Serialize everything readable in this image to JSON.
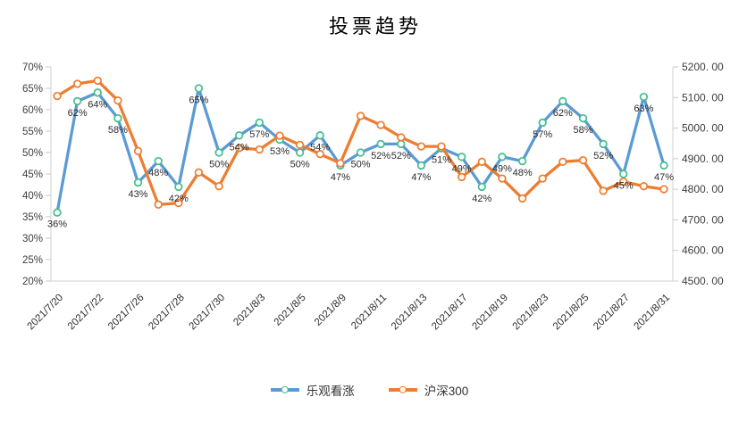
{
  "title": "投票趋势",
  "legend": {
    "items": [
      {
        "label": "乐观看涨",
        "color": "#5B9BD5",
        "marker_ring": "#43BD8D"
      },
      {
        "label": "沪深300",
        "color": "#ED7D31",
        "marker_ring": "#ED7D31"
      }
    ]
  },
  "axes": {
    "left_ticks": [
      "70%",
      "65%",
      "60%",
      "55%",
      "50%",
      "45%",
      "40%",
      "35%",
      "30%",
      "25%",
      "20%"
    ],
    "right_ticks": [
      "5200. 00",
      "5100. 00",
      "5000. 00",
      "4900. 00",
      "4800. 00",
      "4700. 00",
      "4600. 00",
      "4500. 00"
    ],
    "x_tick_labels": [
      "2021/7/20",
      "2021/7/22",
      "2021/7/26",
      "2021/7/28",
      "2021/7/30",
      "2021/8/3",
      "2021/8/5",
      "2021/8/9",
      "2021/8/11",
      "2021/8/13",
      "2021/8/17",
      "2021/8/19",
      "2021/8/23",
      "2021/8/25",
      "2021/8/27",
      "2021/8/31"
    ]
  },
  "chart_data": {
    "type": "line",
    "title": "投票趋势",
    "n_points": 31,
    "x_tick_labels": [
      "2021/7/20",
      "2021/7/22",
      "2021/7/26",
      "2021/7/28",
      "2021/7/30",
      "2021/8/3",
      "2021/8/5",
      "2021/8/9",
      "2021/8/11",
      "2021/8/13",
      "2021/8/17",
      "2021/8/19",
      "2021/8/23",
      "2021/8/25",
      "2021/8/27",
      "2021/8/31"
    ],
    "x_ticks_label_every_other_point": true,
    "series": [
      {
        "name": "乐观看涨",
        "axis": "left",
        "unit": "%",
        "color": "#5B9BD5",
        "marker_ring": "#43BD8D",
        "data_labels_shown": true,
        "values": [
          36,
          62,
          64,
          58,
          43,
          48,
          42,
          65,
          50,
          54,
          57,
          53,
          50,
          54,
          47,
          50,
          52,
          52,
          47,
          51,
          49,
          42,
          49,
          48,
          57,
          62,
          58,
          52,
          45,
          63,
          47
        ]
      },
      {
        "name": "沪深300",
        "axis": "right",
        "color": "#ED7D31",
        "marker_ring": "#ED7D31",
        "data_labels_shown": false,
        "values": [
          5105,
          5145,
          5155,
          5090,
          4925,
          4750,
          4755,
          4855,
          4810,
          4935,
          4930,
          4975,
          4945,
          4915,
          4885,
          5040,
          5010,
          4970,
          4940,
          4940,
          4840,
          4890,
          4835,
          4770,
          4835,
          4890,
          4895,
          4795,
          4825,
          4810,
          4800
        ]
      }
    ],
    "left_axis": {
      "min": 20,
      "max": 70,
      "step": 5,
      "unit": "%"
    },
    "right_axis": {
      "min": 4500,
      "max": 5200,
      "step": 100,
      "format": "0.00"
    },
    "grid": false,
    "legend_position": "bottom"
  }
}
